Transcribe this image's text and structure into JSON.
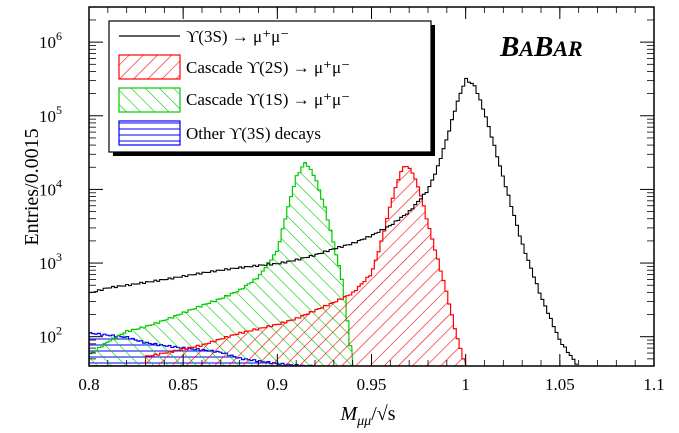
{
  "chart_data": {
    "type": "histogram",
    "xlabel": "M_μμ/√s",
    "ylabel": "Entries/0.0015",
    "xlim": [
      0.8,
      1.1
    ],
    "ylim": [
      40,
      3000000
    ],
    "y_scale": "log",
    "bin_width": 0.0015,
    "x_ticks": [
      "0.8",
      "0.85",
      "0.9",
      "0.95",
      "1",
      "1.05",
      "1.1"
    ],
    "y_ticks": [
      {
        "value": 100,
        "base": "10",
        "exp": "2"
      },
      {
        "value": 1000,
        "base": "10",
        "exp": "3"
      },
      {
        "value": 10000,
        "base": "10",
        "exp": "4"
      },
      {
        "value": 100000,
        "base": "10",
        "exp": "5"
      },
      {
        "value": 1000000,
        "base": "10",
        "exp": "6"
      }
    ],
    "grid": false,
    "legend_position": "top-left",
    "branding": {
      "big1": "B",
      "small1": "A",
      "big2": "B",
      "small2": "AR"
    },
    "series": [
      {
        "name": "ϒ(3S) → μ⁺μ⁻",
        "legend_label": "ϒ(3S) → μ⁺μ⁻",
        "color": "#000000",
        "style": "line",
        "points": [
          [
            0.8,
            380
          ],
          [
            0.81,
            460
          ],
          [
            0.83,
            560
          ],
          [
            0.85,
            660
          ],
          [
            0.87,
            780
          ],
          [
            0.89,
            930
          ],
          [
            0.9,
            1000
          ],
          [
            0.91,
            1130
          ],
          [
            0.92,
            1300
          ],
          [
            0.93,
            1550
          ],
          [
            0.94,
            1800
          ],
          [
            0.95,
            2300
          ],
          [
            0.96,
            3200
          ],
          [
            0.97,
            5000
          ],
          [
            0.98,
            10000
          ],
          [
            0.985,
            20000
          ],
          [
            0.99,
            50000
          ],
          [
            0.995,
            140000
          ],
          [
            1.0,
            320000
          ],
          [
            1.005,
            250000
          ],
          [
            1.01,
            110000
          ],
          [
            1.015,
            40000
          ],
          [
            1.02,
            14000
          ],
          [
            1.025,
            5000
          ],
          [
            1.03,
            1800
          ],
          [
            1.035,
            800
          ],
          [
            1.04,
            350
          ],
          [
            1.045,
            180
          ],
          [
            1.05,
            90
          ],
          [
            1.055,
            60
          ],
          [
            1.06,
            40
          ]
        ]
      },
      {
        "name": "Cascade ϒ(2S) → μ⁺μ⁻",
        "legend_label": "Cascade ϒ(2S) → μ⁺μ⁻",
        "color": "#ff0000",
        "style": "hatch-back",
        "points": [
          [
            0.83,
            55
          ],
          [
            0.86,
            75
          ],
          [
            0.88,
            110
          ],
          [
            0.9,
            150
          ],
          [
            0.91,
            180
          ],
          [
            0.92,
            230
          ],
          [
            0.93,
            290
          ],
          [
            0.94,
            380
          ],
          [
            0.95,
            700
          ],
          [
            0.955,
            1800
          ],
          [
            0.96,
            6000
          ],
          [
            0.965,
            16000
          ],
          [
            0.968,
            22000
          ],
          [
            0.972,
            17000
          ],
          [
            0.976,
            9000
          ],
          [
            0.98,
            3500
          ],
          [
            0.985,
            1200
          ],
          [
            0.99,
            400
          ],
          [
            0.995,
            110
          ],
          [
            1.0,
            40
          ]
        ]
      },
      {
        "name": "Cascade ϒ(1S) → μ⁺μ⁻",
        "legend_label": "Cascade ϒ(1S) → μ⁺μ⁻",
        "color": "#00cc00",
        "style": "hatch-fwd",
        "points": [
          [
            0.8,
            55
          ],
          [
            0.81,
            85
          ],
          [
            0.82,
            120
          ],
          [
            0.83,
            140
          ],
          [
            0.84,
            170
          ],
          [
            0.85,
            210
          ],
          [
            0.86,
            260
          ],
          [
            0.87,
            320
          ],
          [
            0.88,
            420
          ],
          [
            0.89,
            650
          ],
          [
            0.9,
            1500
          ],
          [
            0.905,
            5000
          ],
          [
            0.91,
            15000
          ],
          [
            0.915,
            24000
          ],
          [
            0.92,
            15000
          ],
          [
            0.925,
            6000
          ],
          [
            0.93,
            1800
          ],
          [
            0.935,
            500
          ],
          [
            0.94,
            40
          ]
        ]
      },
      {
        "name": "Other ϒ(3S) decays",
        "legend_label": "Other ϒ(3S) decays",
        "color": "#0000ff",
        "style": "hatch-horiz",
        "points": [
          [
            0.8,
            110
          ],
          [
            0.82,
            100
          ],
          [
            0.83,
            85
          ],
          [
            0.85,
            70
          ],
          [
            0.87,
            60
          ],
          [
            0.88,
            50
          ],
          [
            0.9,
            44
          ],
          [
            0.92,
            40
          ]
        ]
      }
    ]
  }
}
